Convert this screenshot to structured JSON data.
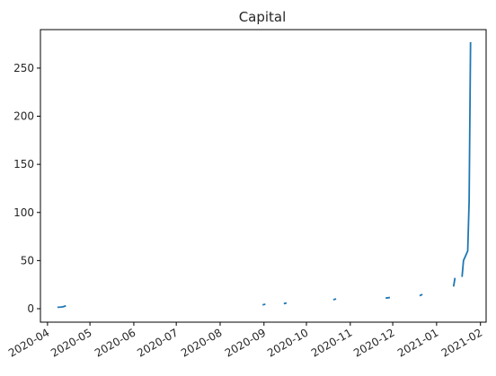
{
  "chart_data": {
    "type": "line",
    "title": "Capital",
    "xlabel": "",
    "ylabel": "",
    "x_tick_labels": [
      "2020-04",
      "2020-05",
      "2020-06",
      "2020-07",
      "2020-08",
      "2020-09",
      "2020-10",
      "2020-11",
      "2020-12",
      "2021-01",
      "2021-02"
    ],
    "x_ticks": [
      "2020-04-01",
      "2020-05-01",
      "2020-06-01",
      "2020-07-01",
      "2020-08-01",
      "2020-09-01",
      "2020-10-01",
      "2020-11-01",
      "2020-12-01",
      "2021-01-01",
      "2021-02-01"
    ],
    "y_ticks": [
      0,
      50,
      100,
      150,
      200,
      250
    ],
    "xlim": [
      "2020-03-27",
      "2021-02-05"
    ],
    "ylim": [
      -14,
      290
    ],
    "grid": false,
    "line_color": "#1f77b4",
    "segments": [
      [
        [
          "2020-04-08",
          1.5
        ],
        [
          "2020-04-10",
          1.6
        ],
        [
          "2020-04-12",
          2.0
        ],
        [
          "2020-04-14",
          3.0
        ]
      ],
      [
        [
          "2020-08-31",
          4.0
        ],
        [
          "2020-09-02",
          4.6
        ]
      ],
      [
        [
          "2020-09-15",
          5.2
        ],
        [
          "2020-09-17",
          5.9
        ]
      ],
      [
        [
          "2020-10-20",
          9.3
        ],
        [
          "2020-10-22",
          10.2
        ]
      ],
      [
        [
          "2020-11-26",
          11.0
        ],
        [
          "2020-11-29",
          11.6
        ]
      ],
      [
        [
          "2020-12-20",
          13.4
        ],
        [
          "2020-12-22",
          14.8
        ]
      ],
      [
        [
          "2021-01-13",
          23.0
        ],
        [
          "2021-01-14",
          32.0
        ]
      ],
      [
        [
          "2021-01-19",
          33.0
        ],
        [
          "2021-01-20",
          50.0
        ],
        [
          "2021-01-23",
          60.0
        ],
        [
          "2021-01-24",
          112.0
        ],
        [
          "2021-01-25",
          277.0
        ]
      ]
    ]
  }
}
